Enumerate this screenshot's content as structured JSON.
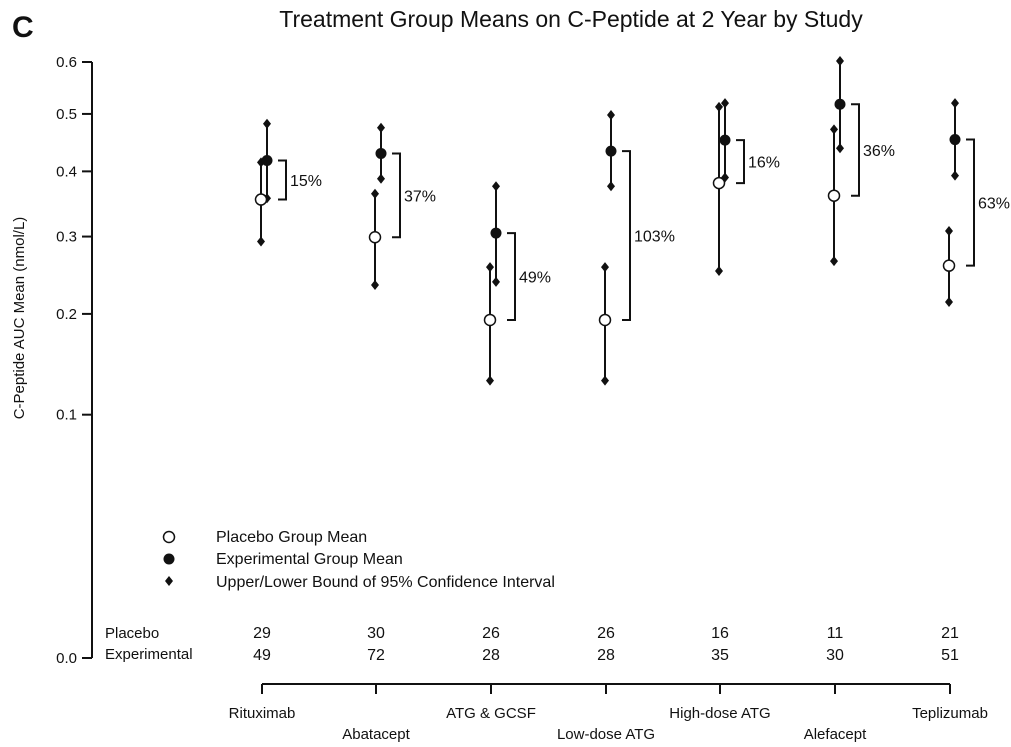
{
  "chart_data": {
    "type": "scatter",
    "panel_label": "C",
    "title": "Treatment Group Means on C-Peptide at 2 Year by Study",
    "ylabel": "C-Peptide AUC Mean (nmol/L)",
    "y_scale": "sqrt",
    "ylim": [
      0,
      0.6
    ],
    "yticks": [
      "0.0",
      "0.1",
      "0.2",
      "0.3",
      "0.4",
      "0.5",
      "0.6"
    ],
    "studies": [
      {
        "name": "Rituximab",
        "placebo_mean": 0.355,
        "placebo_ci": [
          0.293,
          0.415
        ],
        "exp_mean": 0.418,
        "exp_ci": [
          0.357,
          0.482
        ],
        "pct": "15%",
        "n_placebo": "29",
        "n_exp": "49"
      },
      {
        "name": "Abatacept",
        "placebo_mean": 0.299,
        "placebo_ci": [
          0.235,
          0.364
        ],
        "exp_mean": 0.43,
        "exp_ci": [
          0.388,
          0.475
        ],
        "pct": "37%",
        "n_placebo": "30",
        "n_exp": "72"
      },
      {
        "name": "ATG & GCSF",
        "placebo_mean": 0.193,
        "placebo_ci": [
          0.13,
          0.258
        ],
        "exp_mean": 0.305,
        "exp_ci": [
          0.239,
          0.376
        ],
        "pct": "49%",
        "n_placebo": "26",
        "n_exp": "28"
      },
      {
        "name": "Low-dose ATG",
        "placebo_mean": 0.193,
        "placebo_ci": [
          0.13,
          0.258
        ],
        "exp_mean": 0.434,
        "exp_ci": [
          0.376,
          0.498
        ],
        "pct": "103%",
        "n_placebo": "26",
        "n_exp": "28"
      },
      {
        "name": "High-dose ATG",
        "placebo_mean": 0.381,
        "placebo_ci": [
          0.253,
          0.513
        ],
        "exp_mean": 0.453,
        "exp_ci": [
          0.39,
          0.52
        ],
        "pct": "16%",
        "n_placebo": "16",
        "n_exp": "35"
      },
      {
        "name": "Alefacept",
        "placebo_mean": 0.361,
        "placebo_ci": [
          0.266,
          0.472
        ],
        "exp_mean": 0.518,
        "exp_ci": [
          0.439,
          0.602
        ],
        "pct": "36%",
        "n_placebo": "11",
        "n_exp": "30"
      },
      {
        "name": "Teplizumab",
        "placebo_mean": 0.26,
        "placebo_ci": [
          0.214,
          0.308
        ],
        "exp_mean": 0.454,
        "exp_ci": [
          0.393,
          0.52
        ],
        "pct": "63%",
        "n_placebo": "21",
        "n_exp": "51"
      }
    ],
    "legend": {
      "placebo": "Placebo Group Mean",
      "experimental": "Experimental Group Mean",
      "ci": "Upper/Lower Bound of 95% Confidence Interval"
    },
    "counts_labels": {
      "placebo": "Placebo",
      "experimental": "Experimental"
    },
    "grid": false,
    "colors": {
      "marks": "#111111",
      "background": "#ffffff"
    }
  }
}
